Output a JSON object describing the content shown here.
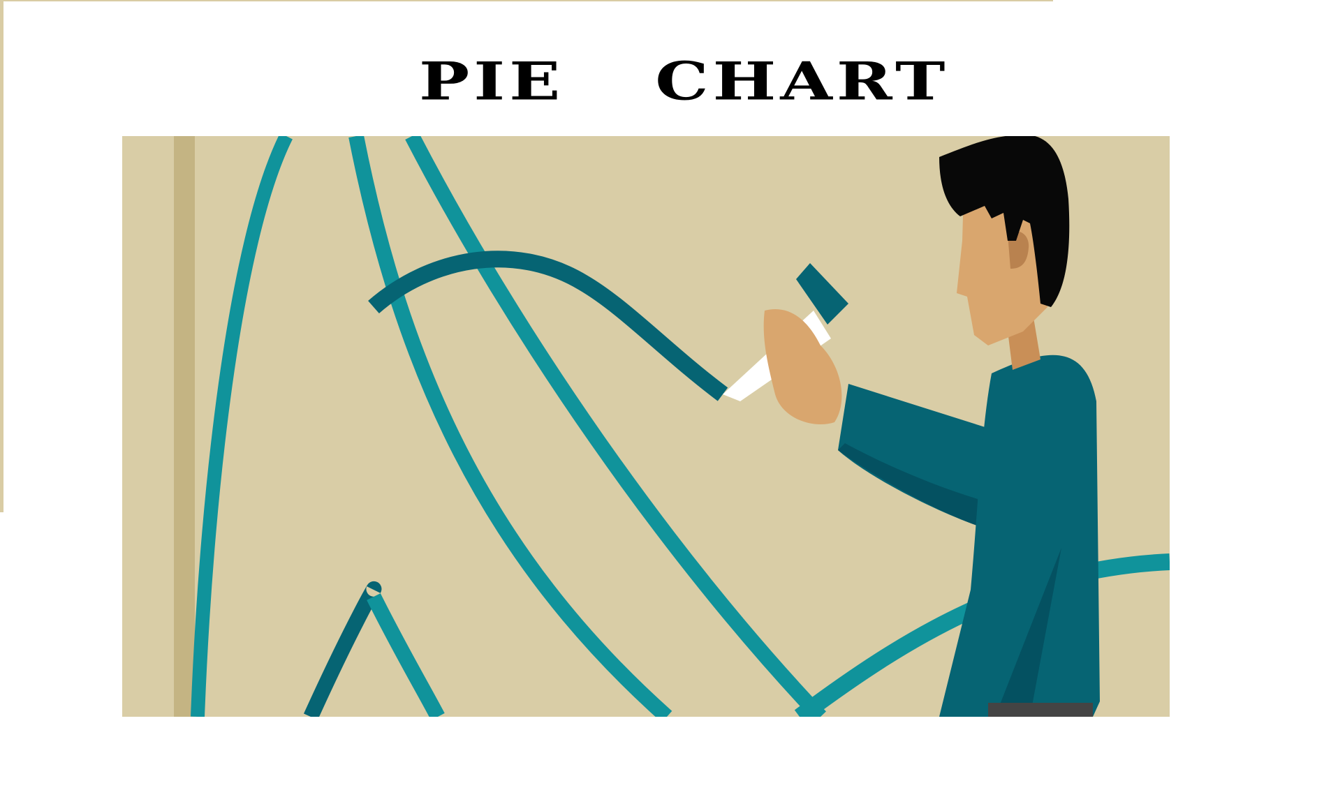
{
  "title": {
    "word1": "PIE",
    "word2": "CHART"
  },
  "illustration": {
    "subject": "man-drawing-curves-icon",
    "colors": {
      "background": "#d9cda6",
      "strip": "#c4b483",
      "teal_light": "#10939b",
      "teal_dark": "#066473",
      "jacket": "#066473",
      "jacket_shadow": "#045161",
      "skin": "#d9a66e",
      "hair": "#080808",
      "chalk": "#ffffff",
      "trousers": "#444444"
    }
  }
}
